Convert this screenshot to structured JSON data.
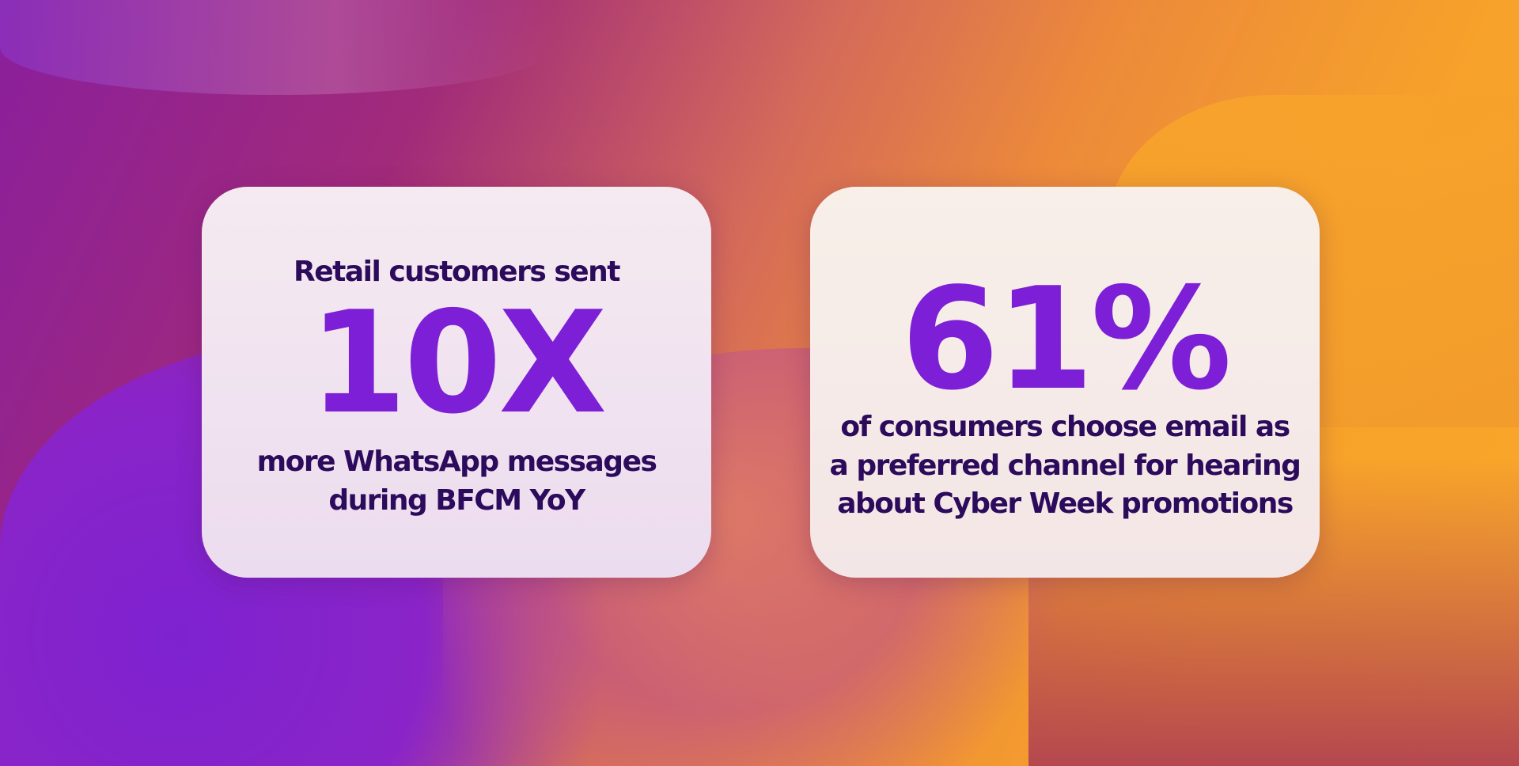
{
  "colors": {
    "heading": "#2c0a5c",
    "accent": "#7d1fd6"
  },
  "cards": [
    {
      "intro": "Retail customers sent",
      "stat": "10X",
      "lines": [
        "more WhatsApp messages",
        "during BFCM YoY"
      ]
    },
    {
      "stat": "61%",
      "lines": [
        "of consumers choose email as",
        "a preferred channel for hearing",
        "about Cyber Week promotions"
      ]
    }
  ]
}
